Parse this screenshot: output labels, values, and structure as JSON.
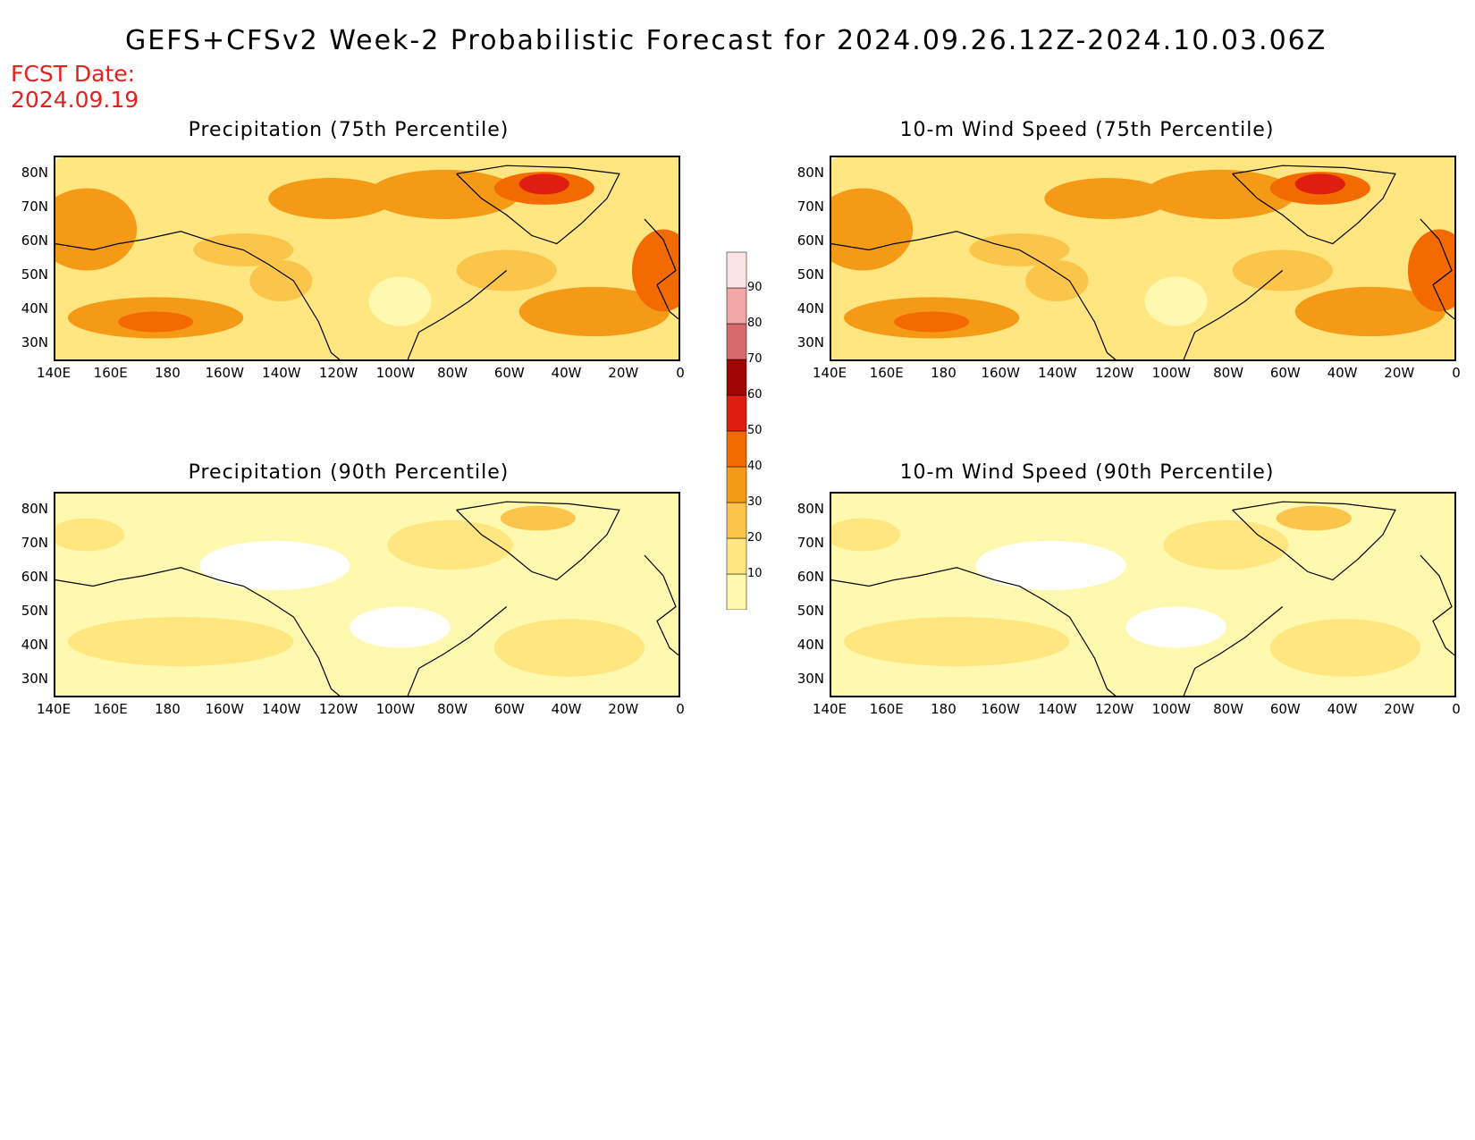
{
  "title": "GEFS+CFSv2 Week-2 Probabilistic Forecast for 2024.09.26.12Z-2024.10.03.06Z",
  "forecast_date_label": "FCST Date:",
  "forecast_date_value": "2024.09.19",
  "panels": [
    {
      "title": "Precipitation (75th Percentile)",
      "intensity": "high"
    },
    {
      "title": "10-m Wind Speed (75th Percentile)",
      "intensity": "high"
    },
    {
      "title": "Precipitation (90th Percentile)",
      "intensity": "low"
    },
    {
      "title": "10-m Wind Speed (90th Percentile)",
      "intensity": "low"
    }
  ],
  "lat_labels": [
    "80N",
    "70N",
    "60N",
    "50N",
    "40N",
    "30N"
  ],
  "lon_labels": [
    "140E",
    "160E",
    "180",
    "160W",
    "140W",
    "120W",
    "100W",
    "80W",
    "60W",
    "40W",
    "20W",
    "0"
  ],
  "colorbar": {
    "levels": [
      "10",
      "20",
      "30",
      "40",
      "50",
      "60",
      "70",
      "80",
      "90"
    ],
    "colors": [
      "#fff9b0",
      "#ffe680",
      "#fbc44a",
      "#f49a17",
      "#f26a00",
      "#dd1e10",
      "#a10404",
      "#d76a6a",
      "#f2a6a6",
      "#fde4e4"
    ]
  }
}
